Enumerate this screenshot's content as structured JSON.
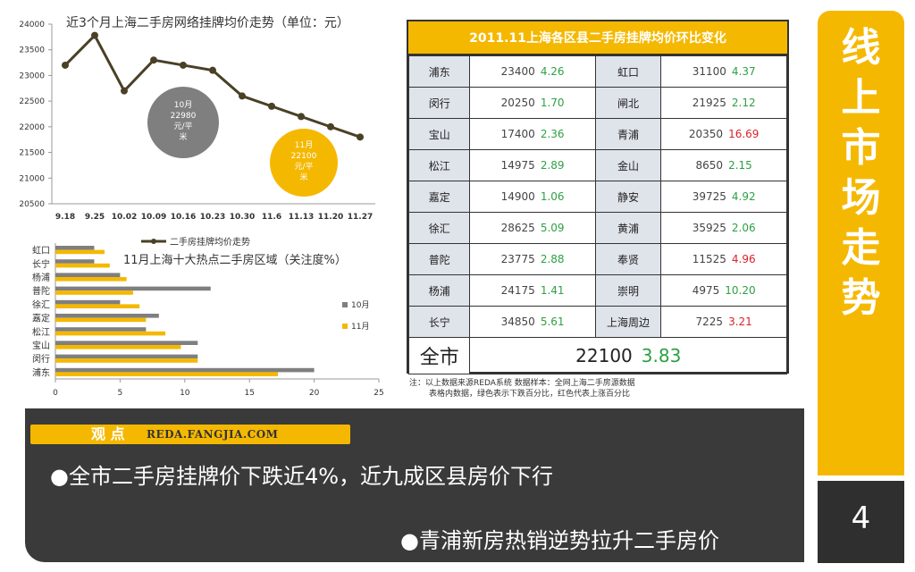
{
  "side_banner": {
    "title_chars": [
      "线",
      "上",
      "市",
      "场",
      "走",
      "势"
    ],
    "page_number": "4"
  },
  "chart_data": [
    {
      "type": "line",
      "title": "近3个月上海二手房网络挂牌均价走势（单位：元）",
      "legend": "二手房挂牌均价走势",
      "x": [
        "9.18",
        "9.25",
        "10.02",
        "10.09",
        "10.16",
        "10.23",
        "10.30",
        "11.6",
        "11.13",
        "11.20",
        "11.27"
      ],
      "values": [
        23200,
        23780,
        22700,
        23300,
        23200,
        23100,
        22600,
        22400,
        22200,
        22000,
        21800
      ],
      "ylim": [
        20500,
        24000
      ],
      "yticks": [
        20500,
        21000,
        21500,
        22000,
        22500,
        23000,
        23500,
        24000
      ],
      "annotations": [
        {
          "text": "10月 22980 元/平 米",
          "lines": [
            "10月",
            "22980",
            "元/平",
            "米"
          ],
          "color": "#7f7f7f"
        },
        {
          "text": "11月 22100 元/平 米",
          "lines": [
            "11月",
            "22100",
            "元/平",
            "米"
          ],
          "color": "#f5b800"
        }
      ]
    },
    {
      "type": "bar",
      "orientation": "horizontal",
      "title": "11月上海十大热点二手房区域（关注度%）",
      "categories": [
        "虹口",
        "长宁",
        "杨浦",
        "普陀",
        "徐汇",
        "嘉定",
        "松江",
        "宝山",
        "闵行",
        "浦东"
      ],
      "series": [
        {
          "name": "10月",
          "color": "#7f7f7f",
          "values": [
            3,
            3,
            5,
            12,
            5,
            8,
            7,
            11,
            11,
            20
          ]
        },
        {
          "name": "11月",
          "color": "#f5b800",
          "values": [
            3.8,
            4.2,
            5.5,
            6,
            6.5,
            7,
            8.5,
            9.7,
            11,
            17.2
          ]
        }
      ],
      "xlim": [
        0,
        25
      ],
      "xticks": [
        0,
        5,
        10,
        15,
        20,
        25
      ]
    }
  ],
  "table": {
    "title": "2011.11上海各区县二手房挂牌均价环比变化",
    "rows": [
      {
        "d1": "浦东",
        "p1": "23400",
        "c1": "4.26",
        "t1": "down",
        "d2": "虹口",
        "p2": "31100",
        "c2": "4.37",
        "t2": "down"
      },
      {
        "d1": "闵行",
        "p1": "20250",
        "c1": "1.70",
        "t1": "down",
        "d2": "闸北",
        "p2": "21925",
        "c2": "2.12",
        "t2": "down"
      },
      {
        "d1": "宝山",
        "p1": "17400",
        "c1": "2.36",
        "t1": "down",
        "d2": "青浦",
        "p2": "20350",
        "c2": "16.69",
        "t2": "up"
      },
      {
        "d1": "松江",
        "p1": "14975",
        "c1": "2.89",
        "t1": "down",
        "d2": "金山",
        "p2": "8650",
        "c2": "2.15",
        "t2": "down"
      },
      {
        "d1": "嘉定",
        "p1": "14900",
        "c1": "1.06",
        "t1": "down",
        "d2": "静安",
        "p2": "39725",
        "c2": "4.92",
        "t2": "down"
      },
      {
        "d1": "徐汇",
        "p1": "28625",
        "c1": "5.09",
        "t1": "down",
        "d2": "黄浦",
        "p2": "35925",
        "c2": "2.06",
        "t2": "down"
      },
      {
        "d1": "普陀",
        "p1": "23775",
        "c1": "2.88",
        "t1": "down",
        "d2": "奉贤",
        "p2": "11525",
        "c2": "4.96",
        "t2": "up"
      },
      {
        "d1": "杨浦",
        "p1": "24175",
        "c1": "1.41",
        "t1": "down",
        "d2": "崇明",
        "p2": "4975",
        "c2": "10.20",
        "t2": "down"
      },
      {
        "d1": "长宁",
        "p1": "34850",
        "c1": "5.61",
        "t1": "down",
        "d2": "上海周边",
        "p2": "7225",
        "c2": "3.21",
        "t2": "up"
      }
    ],
    "total": {
      "label": "全市",
      "price": "22100",
      "change": "3.83"
    }
  },
  "note": {
    "line1": "注：以上数据来源REDA系统   数据样本：全网上海二手房源数据",
    "line2": "表格内数据，绿色表示下跌百分比，红色代表上涨百分比"
  },
  "viewpoint": {
    "label": "观 点",
    "url": "REDA.FANGJIA.COM",
    "point1": "●全市二手房挂牌价下跌近4%，近九成区县房价下行",
    "point2": "●青浦新房热销逆势拉升二手房价"
  },
  "colors": {
    "accent": "#f5b800",
    "dark": "#3a3a3a",
    "gray": "#7f7f7f",
    "down": "#2ea043",
    "up": "#d8232a",
    "line": "#4a4026"
  }
}
